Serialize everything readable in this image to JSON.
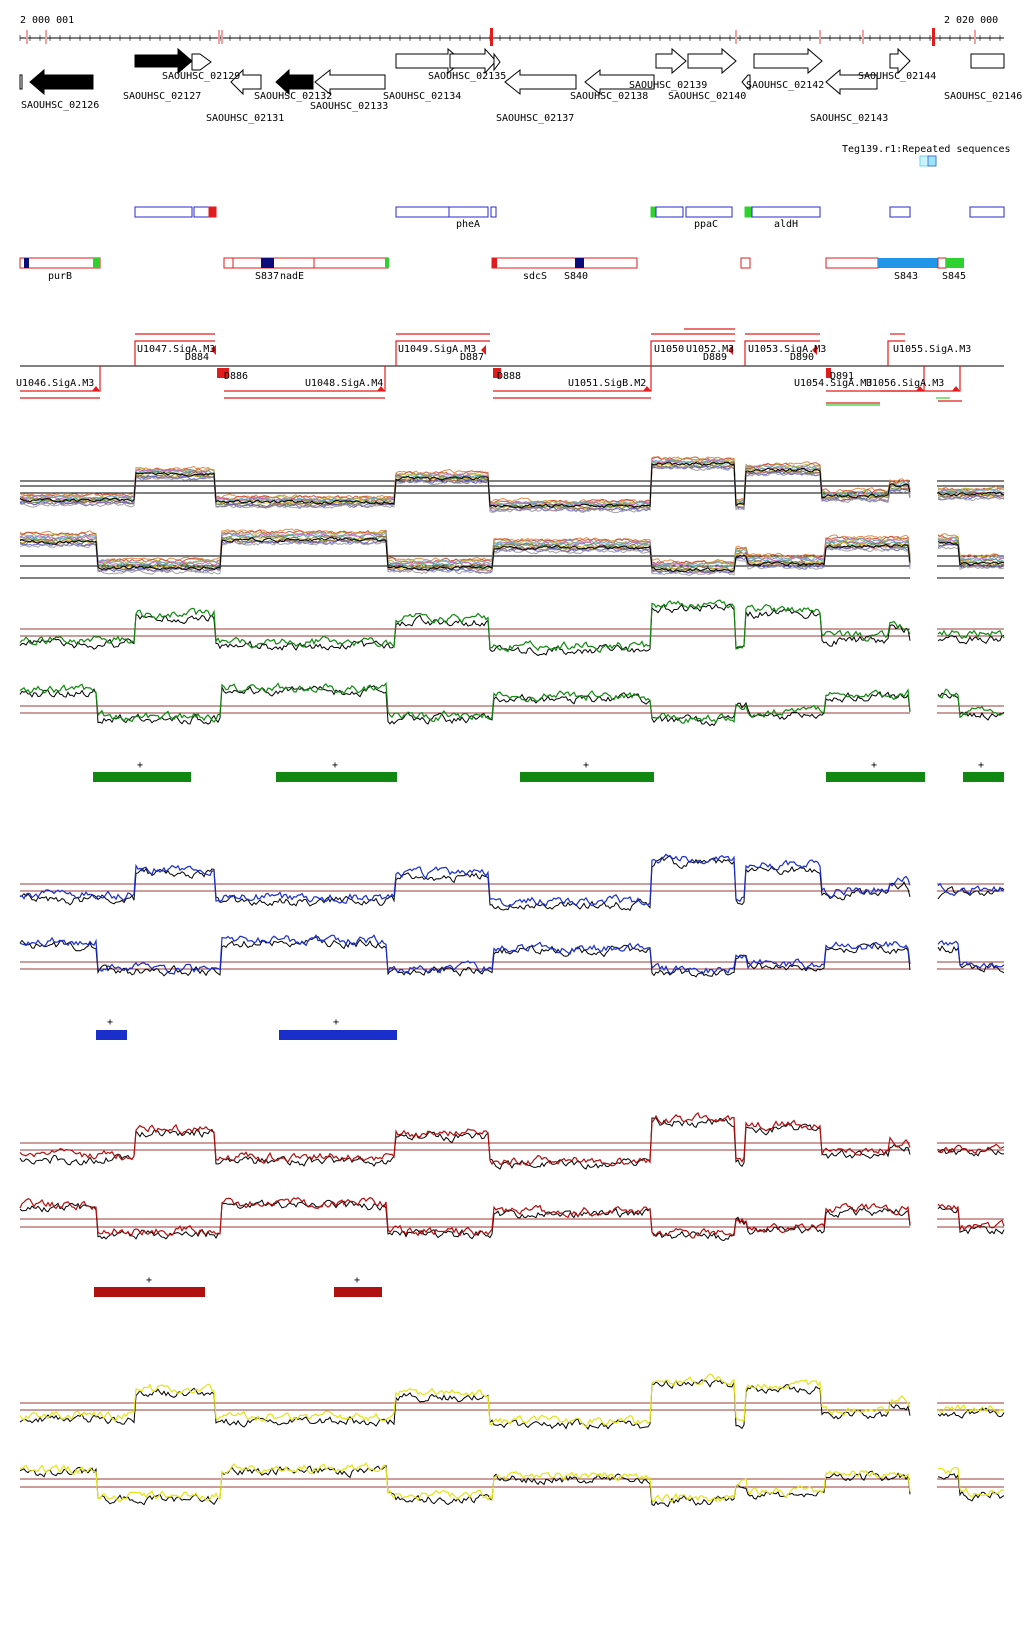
{
  "coords": {
    "start_label": "2 000 001",
    "end_label": "2 020 000"
  },
  "colors": {
    "gene_fill": "#000000",
    "feature_blue": "#2a2acc",
    "feature_red": "#e21c1c",
    "feature_green": "#2fd12f",
    "feature_navy": "#0c0c7a",
    "repeat": "#6fd6f2",
    "track_green": "#118811",
    "track_blue": "#1a2ecc",
    "track_red": "#b01010",
    "track_yellow": "#e3e31a",
    "threshold": "#9b3a3a"
  },
  "genes": [
    {
      "label": "SAOUHSC_02126"
    },
    {
      "label": "SAOUHSC_02127"
    },
    {
      "label": "SAOUHSC_02129"
    },
    {
      "label": "SAOUHSC_02131"
    },
    {
      "label": "SAOUHSC_02132"
    },
    {
      "label": "SAOUHSC_02133"
    },
    {
      "label": "SAOUHSC_02134"
    },
    {
      "label": "SAOUHSC_02135"
    },
    {
      "label": "SAOUHSC_02137"
    },
    {
      "label": "SAOUHSC_02138"
    },
    {
      "label": "SAOUHSC_02139"
    },
    {
      "label": "SAOUHSC_02140"
    },
    {
      "label": "SAOUHSC_02142"
    },
    {
      "label": "SAOUHSC_02143"
    },
    {
      "label": "SAOUHSC_02144"
    },
    {
      "label": "SAOUHSC_02146"
    }
  ],
  "repeat_label": "Teg139.r1:Repeated sequences",
  "features": {
    "top": [
      "pheA",
      "ppaC",
      "aldH"
    ],
    "bottom": [
      "purB",
      "S837",
      "nadE",
      "sdcS",
      "S840",
      "S843",
      "S845"
    ]
  },
  "promoters": {
    "up": [
      "U1047.SigA.M3",
      "U1049.SigA.M3",
      "U1050",
      "U1052.M3",
      "U1053.SigA.M3",
      "U1055.SigA.M3"
    ],
    "down": [
      "U1046.SigA.M3",
      "U1048.SigA.M4",
      "U1051.SigB.M2",
      "U1054.SigA.M3",
      "U1056.SigA.M3"
    ],
    "d": [
      "D884",
      "D886",
      "D887",
      "D888",
      "D889",
      "D890",
      "D891"
    ]
  },
  "segments": {
    "green": [
      "+",
      "+",
      "+",
      "+",
      "+"
    ],
    "blue": [
      "+",
      "+"
    ],
    "red": [
      "+",
      "+"
    ]
  }
}
